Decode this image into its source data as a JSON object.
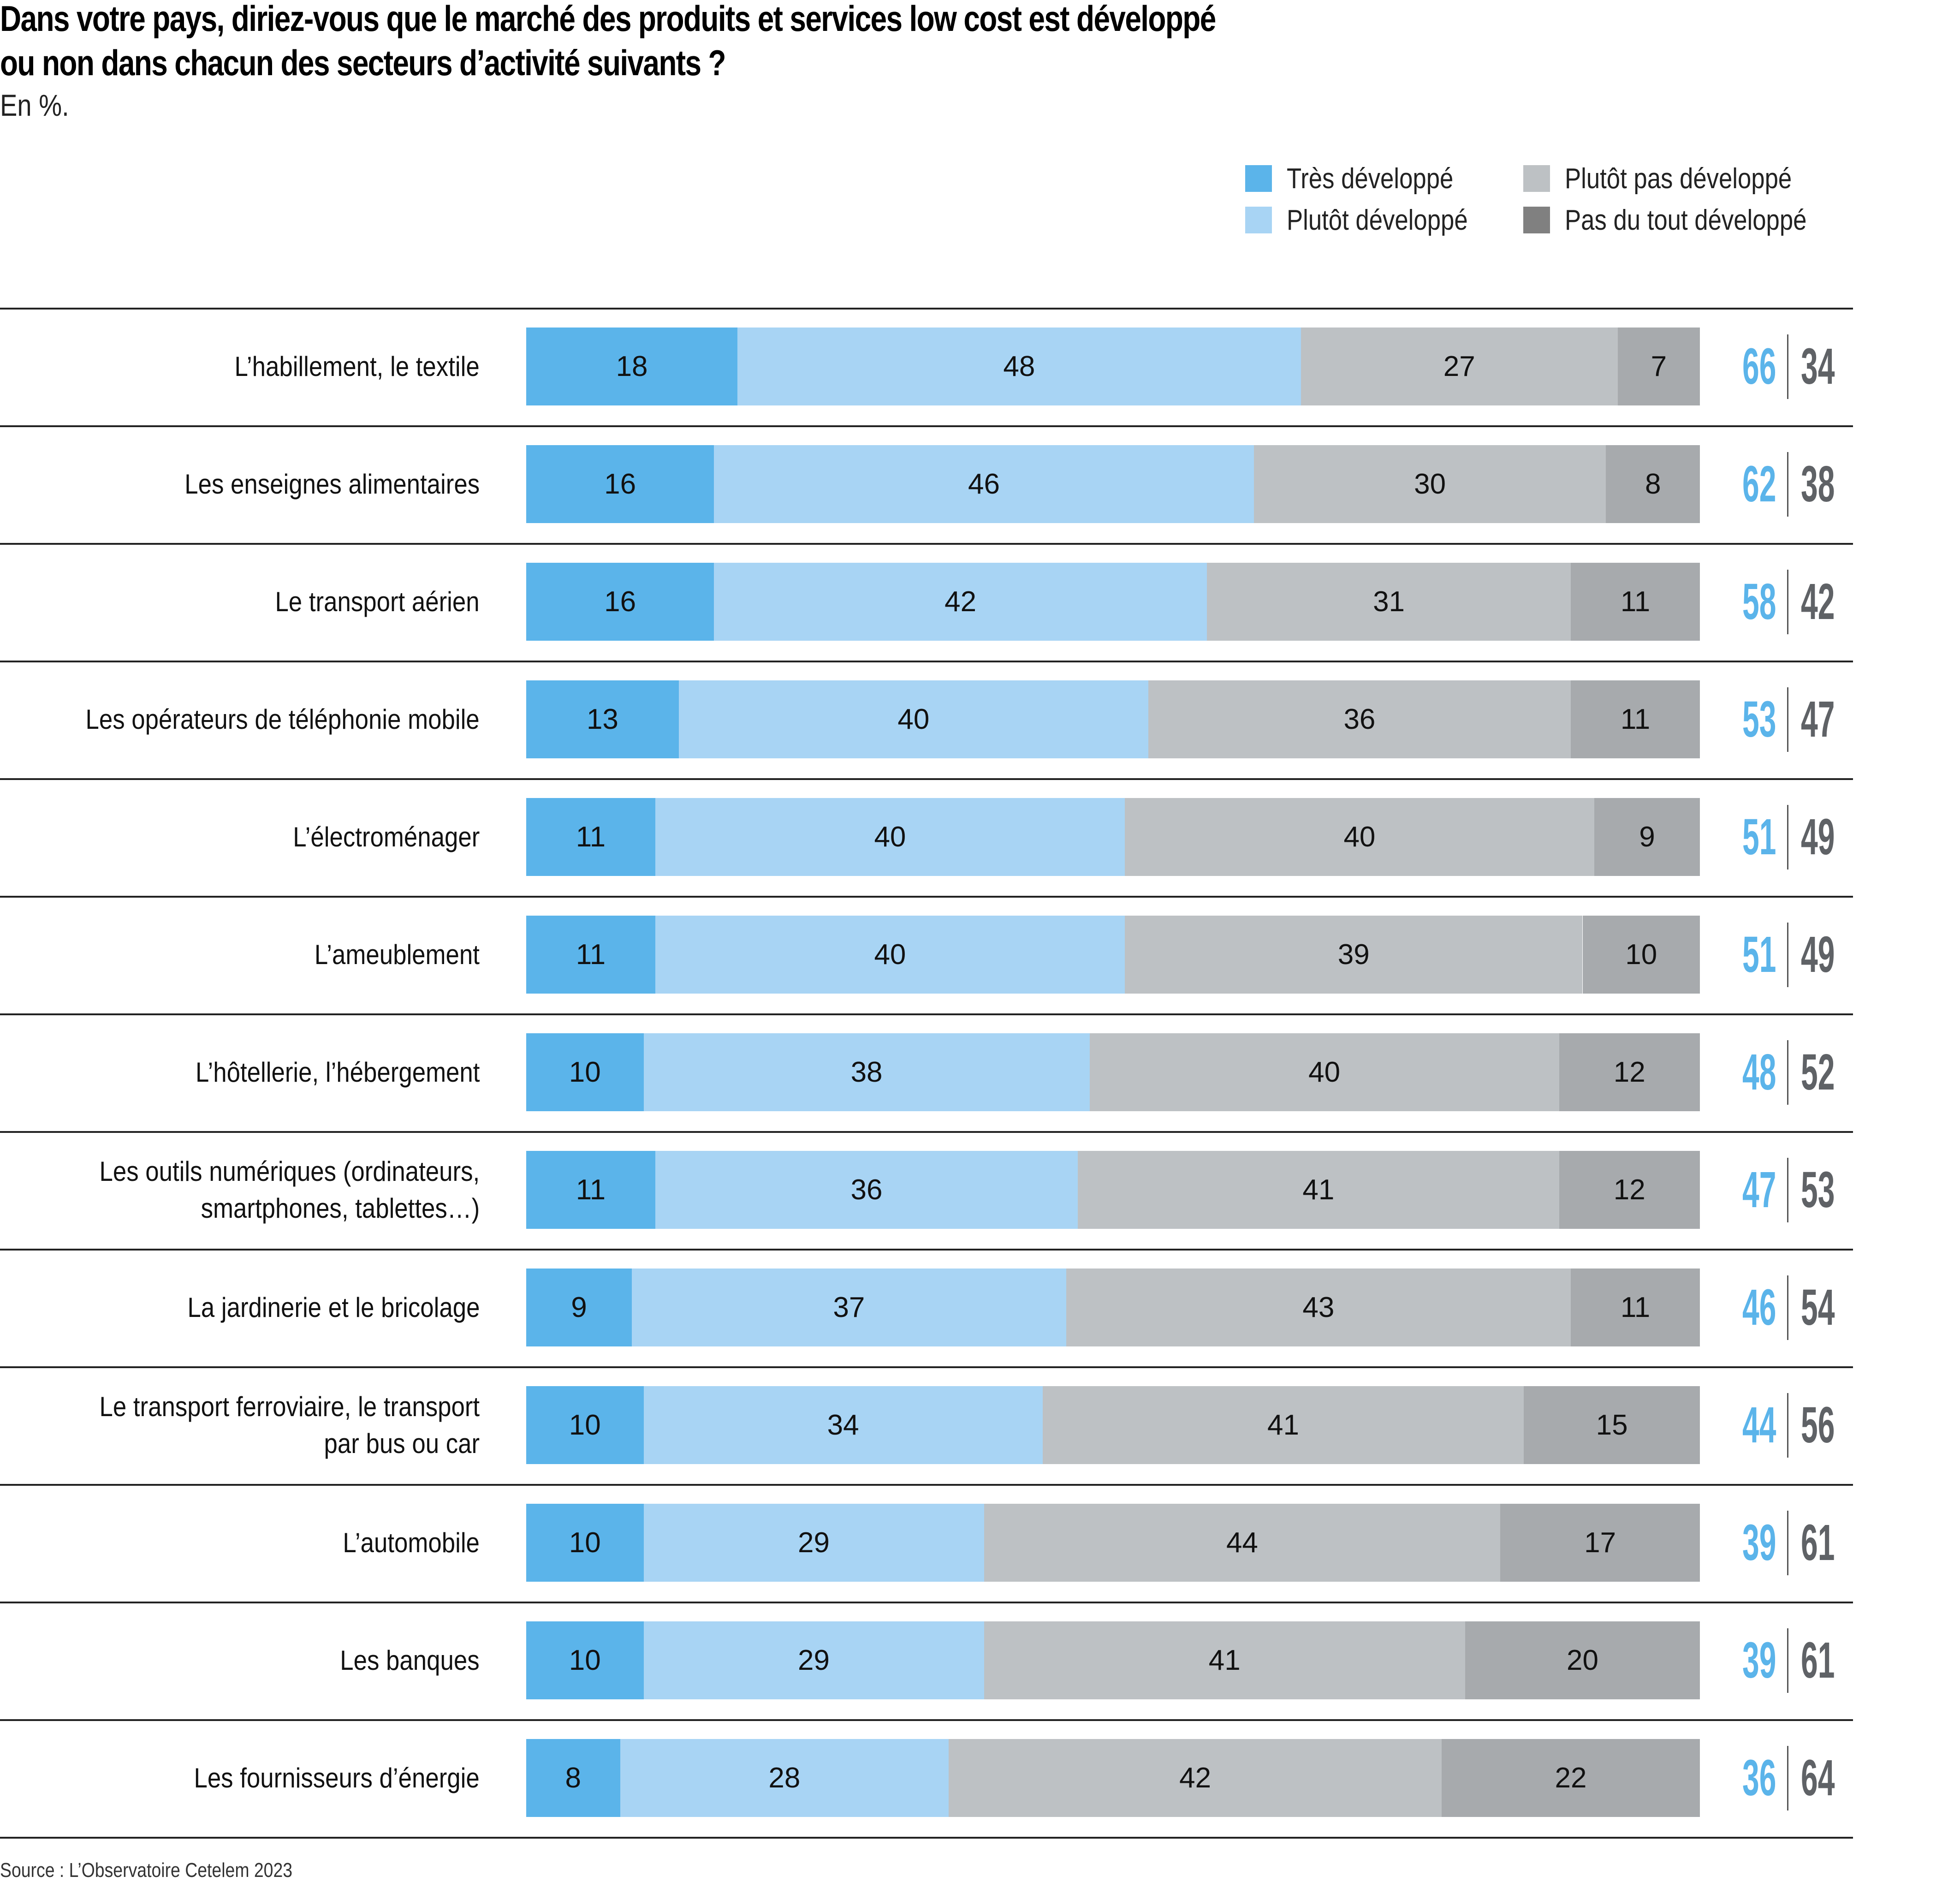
{
  "chart_data": {
    "type": "bar",
    "orientation": "horizontal-stacked-100",
    "title_lines": [
      "Dans votre pays, diriez-vous que le marché des produits et services low cost est développé",
      "ou non dans chacun des secteurs d’activité suivants ?"
    ],
    "subtitle": "En %.",
    "legend": [
      {
        "name": "Très développé",
        "color": "#5bb4ea"
      },
      {
        "name": "Plutôt développé",
        "color": "#a8d4f4"
      },
      {
        "name": "Plutôt pas développé",
        "color": "#bdc1c4"
      },
      {
        "name": "Pas du tout développé",
        "color": "#a7aaad"
      }
    ],
    "legend_swatch_colors_display": [
      "#5bb4ea",
      "#a8d4f4",
      "#bdc1c4",
      "#808080"
    ],
    "legend_position": "top-right",
    "categories": [
      [
        "L’habillement, le textile"
      ],
      [
        "Les enseignes alimentaires"
      ],
      [
        "Le transport aérien"
      ],
      [
        "Les opérateurs de téléphonie mobile"
      ],
      [
        "L’électroménager"
      ],
      [
        "L’ameublement"
      ],
      [
        "L’hôtellerie, l’hébergement"
      ],
      [
        "Les outils numériques (ordinateurs,",
        "smartphones, tablettes…)"
      ],
      [
        "La jardinerie et le bricolage"
      ],
      [
        "Le transport ferroviaire, le transport",
        "par bus ou car"
      ],
      [
        "L’automobile"
      ],
      [
        "Les banques"
      ],
      [
        "Les fournisseurs d’énergie"
      ]
    ],
    "series": [
      {
        "name": "Très développé",
        "values": [
          18,
          16,
          16,
          13,
          11,
          11,
          10,
          11,
          9,
          10,
          10,
          10,
          8
        ]
      },
      {
        "name": "Plutôt développé",
        "values": [
          48,
          46,
          42,
          40,
          40,
          40,
          38,
          36,
          37,
          34,
          29,
          29,
          28
        ]
      },
      {
        "name": "Plutôt pas développé",
        "values": [
          27,
          30,
          31,
          36,
          40,
          39,
          40,
          41,
          43,
          41,
          44,
          41,
          42
        ]
      },
      {
        "name": "Pas du tout développé",
        "values": [
          7,
          8,
          11,
          11,
          9,
          10,
          12,
          12,
          11,
          15,
          17,
          20,
          22
        ]
      }
    ],
    "totals_developed": [
      66,
      62,
      58,
      53,
      51,
      51,
      48,
      47,
      46,
      44,
      39,
      39,
      36
    ],
    "totals_not_developed": [
      34,
      38,
      42,
      47,
      49,
      49,
      52,
      53,
      54,
      56,
      61,
      61,
      64
    ],
    "totals_colors": {
      "developed": "#5bb4ea",
      "not_developed": "#5f6266"
    },
    "xlim": [
      0,
      100
    ],
    "grid": false,
    "source": "Source : L’Observatoire Cetelem 2023"
  }
}
